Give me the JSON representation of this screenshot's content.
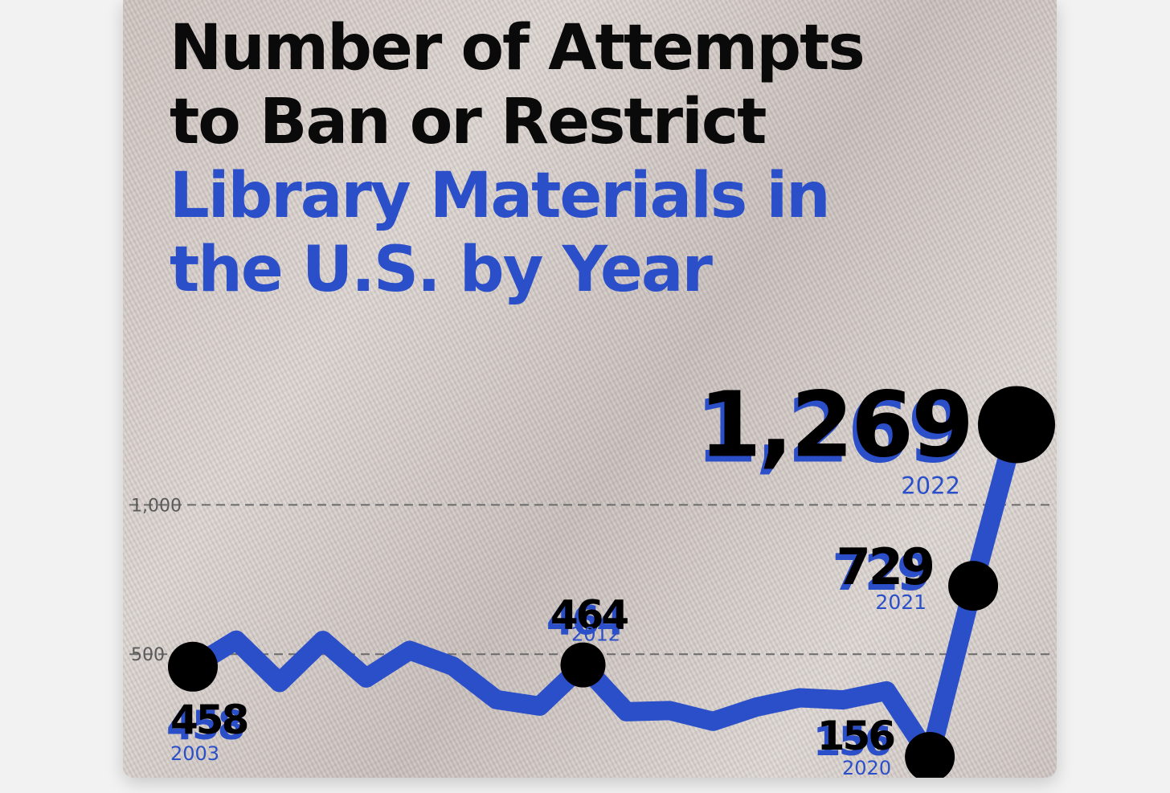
{
  "title": {
    "line1": "Number of Attempts",
    "line2": "to Ban or Restrict",
    "line3": "Library Materials in",
    "line4": "the U.S. by Year"
  },
  "colors": {
    "line": "#2b4fc9",
    "marker": "#000000",
    "title_dark": "#0a0a0a",
    "title_blue": "#2b4fc9"
  },
  "chart_data": {
    "type": "line",
    "title": "Number of Attempts to Ban or Restrict Library Materials in the U.S. by Year",
    "xlabel": "",
    "ylabel": "",
    "x": [
      2003,
      2004,
      2005,
      2006,
      2007,
      2008,
      2009,
      2010,
      2011,
      2012,
      2013,
      2014,
      2015,
      2016,
      2017,
      2018,
      2019,
      2020,
      2021,
      2022
    ],
    "values": [
      458,
      547,
      405,
      546,
      420,
      513,
      460,
      348,
      326,
      464,
      307,
      311,
      275,
      323,
      354,
      347,
      377,
      156,
      729,
      1269
    ],
    "ylim": [
      0,
      1450
    ],
    "yticks": [
      {
        "value": 500,
        "label": "500"
      },
      {
        "value": 1000,
        "label": "1,000"
      }
    ],
    "grid": "dashed horizontal at ticks",
    "labeled_points": [
      {
        "year": 2003,
        "value": 458,
        "value_label": "458",
        "year_label": "2003"
      },
      {
        "year": 2012,
        "value": 464,
        "value_label": "464",
        "year_label": "2012"
      },
      {
        "year": 2020,
        "value": 156,
        "value_label": "156",
        "year_label": "2020"
      },
      {
        "year": 2021,
        "value": 729,
        "value_label": "729",
        "year_label": "2021"
      },
      {
        "year": 2022,
        "value": 1269,
        "value_label": "1,269",
        "year_label": "2022"
      }
    ]
  }
}
